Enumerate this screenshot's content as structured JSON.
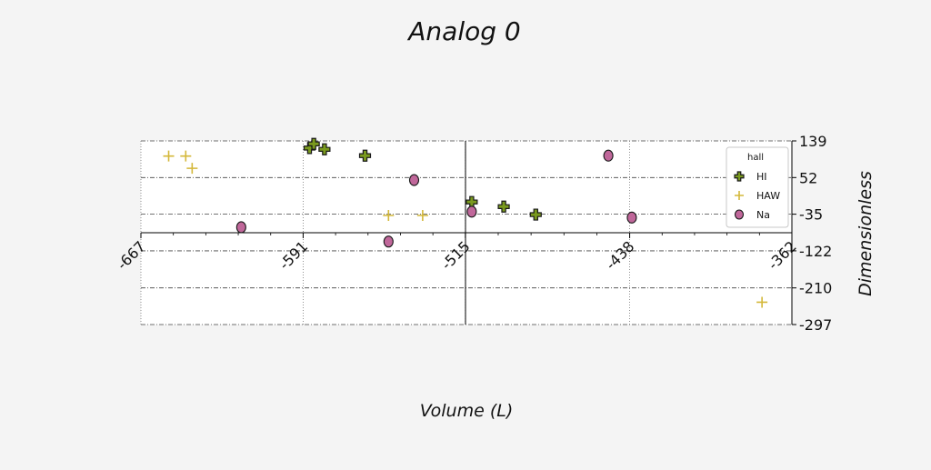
{
  "chart_data": {
    "type": "scatter",
    "title": "Analog 0",
    "xlabel": "Volume (L)",
    "ylabel": "Dimensionless",
    "xlim": [
      -667,
      -362
    ],
    "ylim": [
      -297,
      139
    ],
    "x_ticks": [
      -667,
      -591,
      -515,
      -438,
      -362
    ],
    "x_tick_labels": [
      "-667",
      "-591",
      "-515",
      "-438",
      "-362"
    ],
    "y_ticks": [
      139,
      52,
      -35,
      -122,
      -210,
      -297
    ],
    "y_tick_labels": [
      "139",
      "52",
      "-35",
      "-122",
      "-210",
      "-297"
    ],
    "grid": true,
    "legend": {
      "title": "hall",
      "position": "right"
    },
    "series": [
      {
        "name": "HI",
        "marker": "filled-plus",
        "color": "#7a9a1e",
        "points": [
          [
            -588,
            122
          ],
          [
            -586,
            132
          ],
          [
            -581,
            119
          ],
          [
            -562,
            104
          ],
          [
            -512,
            -6
          ],
          [
            -497,
            -17
          ],
          [
            -482,
            -36
          ]
        ]
      },
      {
        "name": "HAW",
        "marker": "plus",
        "color": "#d4b83a",
        "points": [
          [
            -654,
            103
          ],
          [
            -646,
            103
          ],
          [
            -643,
            74
          ],
          [
            -551,
            -38
          ],
          [
            -535,
            -38
          ],
          [
            -376,
            -244
          ]
        ]
      },
      {
        "name": "Na",
        "marker": "circle",
        "color": "#c0679a",
        "points": [
          [
            -620,
            -66
          ],
          [
            -551,
            -100
          ],
          [
            -539,
            46
          ],
          [
            -512,
            -29
          ],
          [
            -448,
            104
          ],
          [
            -437,
            -43
          ]
        ]
      }
    ]
  }
}
